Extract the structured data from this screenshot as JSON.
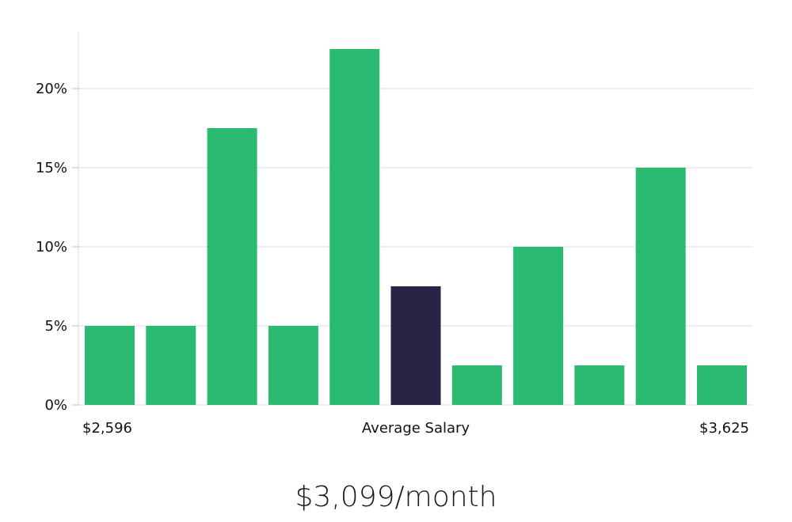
{
  "chart_data": {
    "type": "bar",
    "categories": [
      "1",
      "2",
      "3",
      "4",
      "5",
      "6",
      "7",
      "8",
      "9",
      "10",
      "11"
    ],
    "values": [
      5,
      5,
      17.5,
      5,
      22.5,
      7.5,
      2.5,
      10,
      2.5,
      15,
      2.5
    ],
    "highlight_index": 5,
    "y_ticks": [
      "0%",
      "5%",
      "10%",
      "15%",
      "20%"
    ],
    "y_tick_values": [
      0,
      5,
      10,
      15,
      20
    ],
    "ylim": [
      0,
      23.6
    ],
    "x_labels": {
      "left": "$2,596",
      "center": "Average Salary",
      "right": "$3,625"
    },
    "grid": true,
    "colors": {
      "bar": "#2aba72",
      "bar_highlight": "#272446"
    }
  },
  "summary": {
    "salary_text": "$3,099/month"
  }
}
